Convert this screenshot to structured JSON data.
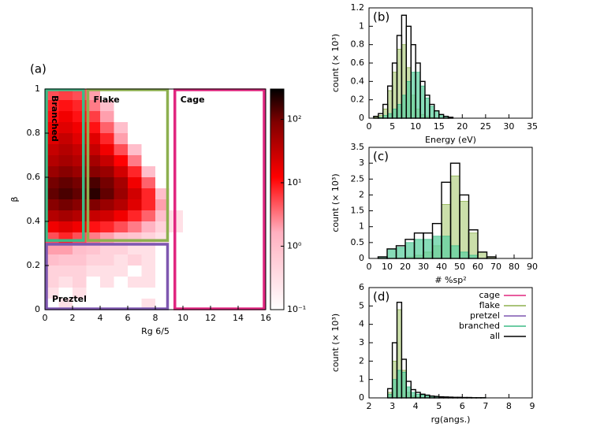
{
  "chart_data": [
    {
      "type": "heatmap",
      "label": "(a)",
      "x_label": "Rg 6/5",
      "y_label": "β",
      "xlim": [
        0,
        16
      ],
      "xticks": [
        0,
        2,
        4,
        6,
        8,
        10,
        12,
        14,
        16
      ],
      "ylim": [
        0,
        1
      ],
      "yticks": [
        0,
        0.2,
        0.4,
        0.6,
        0.8,
        1
      ],
      "x_bins": [
        0,
        1,
        2,
        3,
        4,
        5,
        6,
        7,
        8,
        9,
        10
      ],
      "y_bins": [
        0,
        0.05,
        0.1,
        0.15,
        0.2,
        0.25,
        0.3,
        0.35,
        0.4,
        0.45,
        0.5,
        0.55,
        0.6,
        0.65,
        0.7,
        0.75,
        0.8,
        0.85,
        0.9,
        0.95,
        1
      ],
      "z": [
        [
          null,
          0.3,
          null,
          null,
          null,
          null,
          null,
          0.3,
          null,
          null
        ],
        [
          0.3,
          null,
          0.3,
          null,
          null,
          null,
          null,
          null,
          null,
          null
        ],
        [
          0.5,
          0.3,
          0.5,
          null,
          0.3,
          null,
          0.3,
          0.3,
          null,
          null
        ],
        [
          0.5,
          0.5,
          0.5,
          0.3,
          0.3,
          0.3,
          null,
          0.3,
          null,
          null
        ],
        [
          1,
          0.8,
          0.8,
          0.5,
          0.5,
          0.3,
          0.5,
          0.3,
          null,
          null
        ],
        [
          2,
          2,
          1,
          0.8,
          0.5,
          0.5,
          0.3,
          0.3,
          null,
          null
        ],
        [
          5,
          8,
          5,
          3,
          2,
          1,
          0.8,
          0.5,
          0.3,
          null
        ],
        [
          15,
          20,
          15,
          10,
          8,
          5,
          3,
          1.5,
          0.5,
          0.3
        ],
        [
          40,
          50,
          40,
          30,
          25,
          15,
          8,
          4,
          1,
          0.3
        ],
        [
          80,
          100,
          80,
          90,
          60,
          40,
          20,
          8,
          2,
          null
        ],
        [
          120,
          150,
          120,
          200,
          120,
          60,
          25,
          8,
          1,
          null
        ],
        [
          100,
          120,
          100,
          150,
          100,
          50,
          15,
          4,
          null,
          null
        ],
        [
          60,
          80,
          60,
          80,
          60,
          25,
          8,
          1,
          null,
          null
        ],
        [
          40,
          50,
          40,
          50,
          30,
          12,
          3,
          null,
          null,
          null
        ],
        [
          30,
          40,
          30,
          30,
          15,
          5,
          1,
          null,
          null,
          null
        ],
        [
          20,
          30,
          20,
          20,
          8,
          2,
          null,
          null,
          null,
          null
        ],
        [
          15,
          20,
          15,
          10,
          4,
          1,
          null,
          null,
          null,
          null
        ],
        [
          10,
          15,
          10,
          6,
          2,
          null,
          null,
          null,
          null,
          null
        ],
        [
          8,
          10,
          8,
          3,
          1,
          null,
          null,
          null,
          null,
          null
        ],
        [
          5,
          6,
          5,
          2,
          null,
          null,
          null,
          null,
          null,
          null
        ]
      ],
      "log_color": true,
      "clim": [
        0.1,
        300
      ],
      "cticks": [
        {
          "value": 0.1,
          "label": "10⁻¹"
        },
        {
          "value": 1,
          "label": "10⁰"
        },
        {
          "value": 10,
          "label": "10¹"
        },
        {
          "value": 100,
          "label": "10²"
        }
      ],
      "regions": [
        {
          "text": "Branched",
          "color": "#3dbb86",
          "x": [
            0,
            2.9
          ],
          "y": [
            0.31,
            1
          ],
          "vertical": true
        },
        {
          "text": "Flake",
          "color": "#8db04f",
          "x": [
            3,
            9
          ],
          "y": [
            0.31,
            1
          ]
        },
        {
          "text": "Cage",
          "color": "#e0267f",
          "x": [
            9.3,
            16
          ],
          "y": [
            0,
            1
          ]
        },
        {
          "text": "Preztel",
          "color": "#7e57b0",
          "x": [
            0,
            9
          ],
          "y": [
            0,
            0.3
          ]
        }
      ]
    },
    {
      "type": "histogram",
      "label": "(b)",
      "x_label": "Energy (eV)",
      "y_label": "count (× 10³)",
      "xlim": [
        0,
        35
      ],
      "xticks": [
        0,
        5,
        10,
        15,
        20,
        25,
        30,
        35
      ],
      "ylim": [
        0,
        1.2
      ],
      "yticks": [
        0,
        0.2,
        0.4,
        0.6,
        0.8,
        1,
        1.2
      ],
      "bins": [
        1,
        2,
        3,
        4,
        5,
        6,
        7,
        8,
        9,
        10,
        11,
        12,
        13,
        14,
        15,
        16,
        17,
        18
      ],
      "series": [
        {
          "name": "flake",
          "color": "#8db04f",
          "fill": "#b9d48e",
          "values": [
            0.01,
            0.03,
            0.1,
            0.3,
            0.5,
            0.75,
            0.8,
            0.55,
            0.25,
            0.1,
            0.04,
            0.02,
            0.01,
            0,
            0,
            0,
            0
          ]
        },
        {
          "name": "branched",
          "color": "#3dbb86",
          "fill": "#5fd0a0",
          "values": [
            0,
            0.01,
            0.03,
            0.05,
            0.1,
            0.15,
            0.25,
            0.4,
            0.5,
            0.5,
            0.35,
            0.22,
            0.13,
            0.08,
            0.04,
            0.02,
            0.01
          ]
        },
        {
          "name": "all",
          "color": "#000000",
          "values": [
            0.02,
            0.05,
            0.15,
            0.35,
            0.6,
            0.9,
            1.12,
            1.0,
            0.8,
            0.6,
            0.4,
            0.25,
            0.15,
            0.08,
            0.04,
            0.02,
            0.01
          ]
        }
      ]
    },
    {
      "type": "histogram",
      "label": "(c)",
      "x_label": "# %sp²",
      "y_label": "count (× 10³)",
      "xlim": [
        0,
        90
      ],
      "xticks": [
        0,
        10,
        20,
        30,
        40,
        50,
        60,
        70,
        80,
        90
      ],
      "ylim": [
        0,
        3.5
      ],
      "yticks": [
        0,
        0.5,
        1,
        1.5,
        2,
        2.5,
        3,
        3.5
      ],
      "bins": [
        5,
        10,
        15,
        20,
        25,
        30,
        35,
        40,
        45,
        50,
        55,
        60,
        65,
        70
      ],
      "series": [
        {
          "name": "flake",
          "color": "#8db04f",
          "fill": "#b9d48e",
          "values": [
            0,
            0,
            0,
            0.05,
            0.1,
            0.2,
            0.4,
            1.7,
            2.6,
            1.8,
            0.8,
            0.2,
            0.05
          ]
        },
        {
          "name": "branched",
          "color": "#3dbb86",
          "fill": "#5fd0a0",
          "values": [
            0.05,
            0.3,
            0.35,
            0.5,
            0.6,
            0.6,
            0.7,
            0.7,
            0.4,
            0.2,
            0.1,
            0,
            0
          ]
        },
        {
          "name": "all",
          "color": "#000000",
          "values": [
            0.05,
            0.3,
            0.4,
            0.6,
            0.8,
            0.8,
            1.1,
            2.4,
            3.0,
            2.0,
            0.9,
            0.2,
            0.05
          ]
        }
      ]
    },
    {
      "type": "histogram",
      "label": "(d)",
      "x_label": "rg(angs.)",
      "y_label": "count (× 10³)",
      "xlim": [
        2,
        9
      ],
      "xticks": [
        2,
        3,
        4,
        5,
        6,
        7,
        8,
        9
      ],
      "ylim": [
        0,
        6
      ],
      "yticks": [
        0,
        1,
        2,
        3,
        4,
        5,
        6
      ],
      "legend": "upper right",
      "bins": [
        2.8,
        3.0,
        3.2,
        3.4,
        3.6,
        3.8,
        4.0,
        4.2,
        4.4,
        4.6,
        4.8,
        5.0,
        5.2,
        5.4,
        5.6,
        5.8,
        6.0,
        6.2,
        6.4,
        6.6,
        6.8,
        7.0
      ],
      "series": [
        {
          "name": "cage",
          "color": "#e0267f",
          "values": [
            0,
            0,
            0,
            0,
            0,
            0,
            0,
            0,
            0,
            0,
            0,
            0,
            0,
            0,
            0,
            0,
            0,
            0,
            0,
            0,
            0
          ]
        },
        {
          "name": "flake",
          "color": "#8db04f",
          "fill": "#b9d48e",
          "values": [
            0.3,
            2.0,
            4.8,
            1.5,
            0.3,
            0.1,
            0.05,
            0.02,
            0,
            0,
            0,
            0,
            0,
            0,
            0,
            0,
            0,
            0,
            0,
            0,
            0
          ]
        },
        {
          "name": "pretzel",
          "color": "#7e57b0",
          "values": [
            0,
            0,
            0,
            0,
            0,
            0,
            0,
            0,
            0,
            0,
            0,
            0,
            0,
            0,
            0,
            0,
            0,
            0,
            0,
            0,
            0
          ]
        },
        {
          "name": "branched",
          "color": "#3dbb86",
          "fill": "#5fd0a0",
          "values": [
            0.2,
            1.0,
            1.5,
            1.4,
            0.6,
            0.3,
            0.2,
            0.15,
            0.1,
            0.08,
            0.06,
            0.05,
            0.04,
            0.03,
            0.02,
            0.02,
            0.01,
            0.01,
            0.01,
            0.01,
            0.01
          ]
        },
        {
          "name": "all",
          "color": "#000000",
          "values": [
            0.5,
            3.0,
            5.2,
            2.1,
            0.9,
            0.45,
            0.3,
            0.2,
            0.15,
            0.1,
            0.08,
            0.06,
            0.05,
            0.04,
            0.03,
            0.03,
            0.02,
            0.02,
            0.01,
            0.01,
            0.01
          ]
        }
      ]
    }
  ]
}
